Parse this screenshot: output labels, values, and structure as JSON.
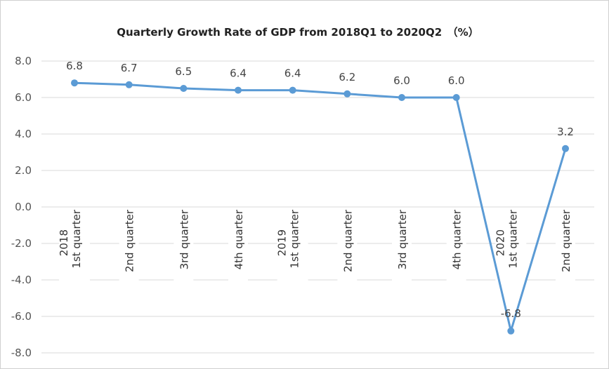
{
  "chart_data": {
    "type": "line",
    "title": "Quarterly Growth Rate of GDP from 2018Q1 to 2020Q2　（%）",
    "categories": [
      {
        "year": "2018",
        "quarter": "1st quarter"
      },
      {
        "year": "",
        "quarter": "2nd quarter"
      },
      {
        "year": "",
        "quarter": "3rd quarter"
      },
      {
        "year": "",
        "quarter": "4th quarter"
      },
      {
        "year": "2019",
        "quarter": "1st quarter"
      },
      {
        "year": "",
        "quarter": "2nd quarter"
      },
      {
        "year": "",
        "quarter": "3rd quarter"
      },
      {
        "year": "",
        "quarter": "4th quarter"
      },
      {
        "year": "2020",
        "quarter": "1st quarter"
      },
      {
        "year": "",
        "quarter": "2nd quarter"
      }
    ],
    "values": [
      6.8,
      6.7,
      6.5,
      6.4,
      6.4,
      6.2,
      6.0,
      6.0,
      -6.8,
      3.2
    ],
    "data_labels": [
      "6.8",
      "6.7",
      "6.5",
      "6.4",
      "6.4",
      "6.2",
      "6.0",
      "6.0",
      "-6.8",
      "3.2"
    ],
    "ylim": [
      -8,
      8
    ],
    "yticks": [
      "8.0",
      "6.0",
      "4.0",
      "2.0",
      "0.0",
      "-2.0",
      "-4.0",
      "-6.0",
      "-8.0"
    ],
    "ytick_values": [
      8,
      6,
      4,
      2,
      0,
      -2,
      -4,
      -6,
      -8
    ],
    "grid": true,
    "line_color": "#5b9bd5",
    "grid_color": "#d9d9d9"
  }
}
